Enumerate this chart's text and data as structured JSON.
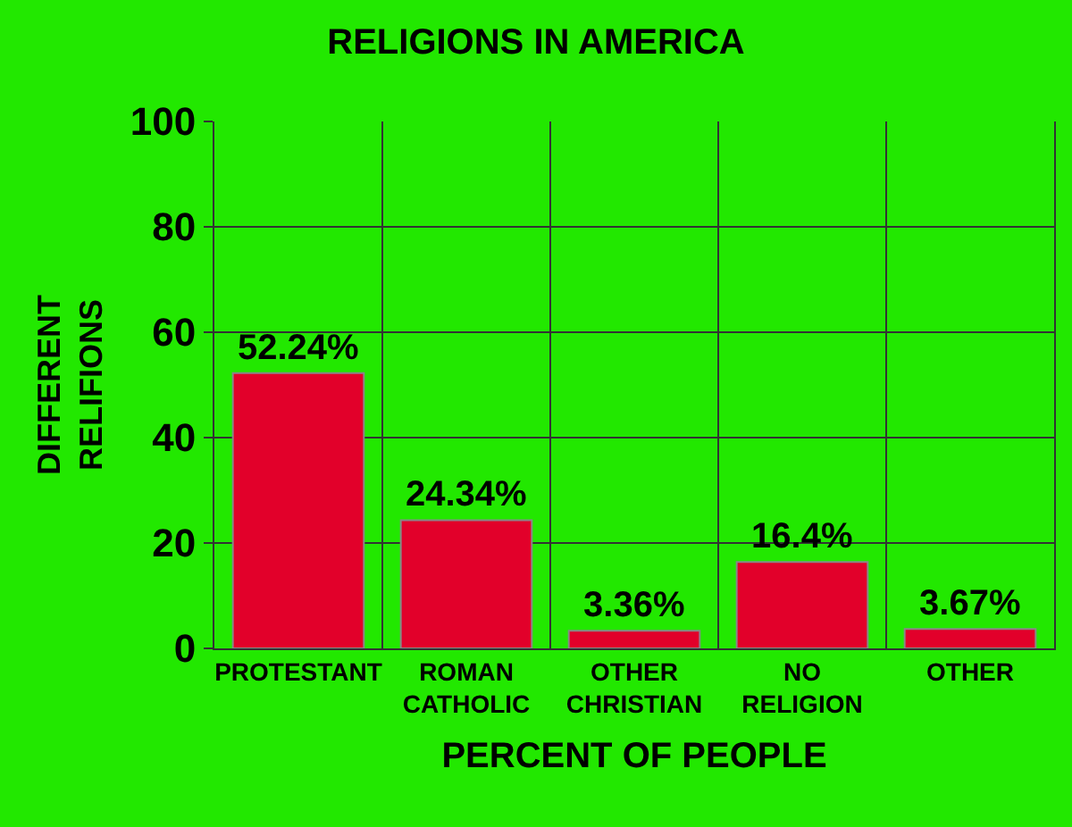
{
  "chart_data": {
    "type": "bar",
    "title": "RELIGIONS IN AMERICA",
    "xlabel": "PERCENT OF PEOPLE",
    "ylabel": "DIFFERENT\nRELIFIONS",
    "categories": [
      "PROTESTANT",
      "ROMAN\nCATHOLIC",
      "OTHER\nCHRISTIAN",
      "NO\nRELIGION",
      "OTHER"
    ],
    "values": [
      52.24,
      24.34,
      3.36,
      16.4,
      3.67
    ],
    "value_labels": [
      "52.24%",
      "24.34%",
      "3.36%",
      "16.4%",
      "3.67%"
    ],
    "color": "#e2002a",
    "ylim": [
      0,
      100
    ],
    "yticks": [
      0,
      20,
      40,
      60,
      80,
      100
    ],
    "grid": true
  }
}
